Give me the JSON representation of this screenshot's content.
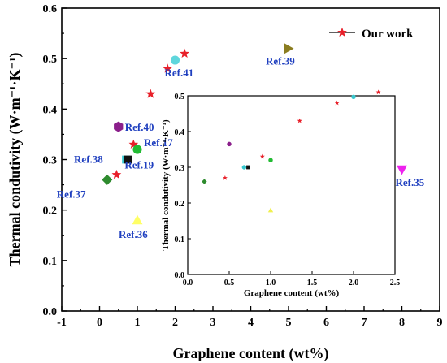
{
  "chart_data": [
    {
      "type": "scatter",
      "xlabel": "Graphene content (wt%)",
      "ylabel": "Thermal condutivity",
      "ylabel_unit": "(W·m⁻¹·K⁻¹)",
      "xlim": [
        -1,
        9
      ],
      "ylim": [
        0,
        0.6
      ],
      "xticks": [
        "-1",
        "0",
        "1",
        "2",
        "3",
        "4",
        "5",
        "6",
        "7",
        "8",
        "9"
      ],
      "yticks": [
        "0.0",
        "0.1",
        "0.2",
        "0.3",
        "0.4",
        "0.5",
        "0.6"
      ],
      "legend": {
        "position": "top-right",
        "entries": [
          "Our work"
        ]
      },
      "series": [
        {
          "name": "Our work",
          "marker": "star",
          "color": "#e8202a",
          "points": [
            [
              0.45,
              0.27
            ],
            [
              0.9,
              0.33
            ],
            [
              1.35,
              0.43
            ],
            [
              1.8,
              0.48
            ],
            [
              2.25,
              0.51
            ]
          ]
        }
      ],
      "references": [
        {
          "label": "Ref.37",
          "x": 0.2,
          "y": 0.26,
          "marker": "diamond",
          "color": "#2e8b2e"
        },
        {
          "label": "Ref.38",
          "x": 0.7,
          "y": 0.3,
          "marker": "square",
          "color": "#38c8cf"
        },
        {
          "label": "Ref.19",
          "x": 0.75,
          "y": 0.3,
          "marker": "square",
          "color": "#111111"
        },
        {
          "label": "Ref.17",
          "x": 1.0,
          "y": 0.32,
          "marker": "circle",
          "color": "#22bb33"
        },
        {
          "label": "Ref.40",
          "x": 0.5,
          "y": 0.365,
          "marker": "hexagon",
          "color": "#8b1f8b"
        },
        {
          "label": "Ref.36",
          "x": 1.0,
          "y": 0.18,
          "marker": "triangle-up",
          "color": "#ffff66"
        },
        {
          "label": "Ref.41",
          "x": 2.0,
          "y": 0.497,
          "marker": "circle",
          "color": "#5fd6dc"
        },
        {
          "label": "Ref.39",
          "x": 5.0,
          "y": 0.52,
          "marker": "triangle-right",
          "color": "#8b7d20"
        },
        {
          "label": "Ref.35",
          "x": 8.0,
          "y": 0.28,
          "marker": "triangle-down",
          "color": "#ee22ee"
        }
      ]
    },
    {
      "type": "scatter",
      "xlabel": "Graphene content (wt%)",
      "ylabel": "Thermal condutivity",
      "ylabel_unit": "(W·m⁻¹·K⁻¹)",
      "xlim": [
        0,
        2.5
      ],
      "ylim": [
        0,
        0.5
      ],
      "xticks": [
        "0.0",
        "0.5",
        "1.0",
        "1.5",
        "2.0",
        "2.5"
      ],
      "yticks": [
        "0.0",
        "0.1",
        "0.2",
        "0.3",
        "0.4",
        "0.5"
      ],
      "points": [
        {
          "x": 0.2,
          "y": 0.26,
          "marker": "diamond",
          "color": "#2e8b2e"
        },
        {
          "x": 0.45,
          "y": 0.27,
          "marker": "star",
          "color": "#e8202a"
        },
        {
          "x": 0.5,
          "y": 0.365,
          "marker": "circle",
          "color": "#8b1f8b"
        },
        {
          "x": 0.68,
          "y": 0.3,
          "marker": "circle",
          "color": "#38c8cf"
        },
        {
          "x": 0.73,
          "y": 0.3,
          "marker": "square",
          "color": "#111111"
        },
        {
          "x": 0.9,
          "y": 0.33,
          "marker": "star",
          "color": "#e8202a"
        },
        {
          "x": 1.0,
          "y": 0.32,
          "marker": "circle",
          "color": "#22bb33"
        },
        {
          "x": 1.0,
          "y": 0.18,
          "marker": "triangle-up",
          "color": "#f0f050"
        },
        {
          "x": 1.35,
          "y": 0.43,
          "marker": "star",
          "color": "#e8202a"
        },
        {
          "x": 1.8,
          "y": 0.48,
          "marker": "star",
          "color": "#e8202a"
        },
        {
          "x": 2.0,
          "y": 0.497,
          "marker": "circle",
          "color": "#38c8cf"
        },
        {
          "x": 2.3,
          "y": 0.51,
          "marker": "star",
          "color": "#e8202a"
        }
      ]
    }
  ]
}
